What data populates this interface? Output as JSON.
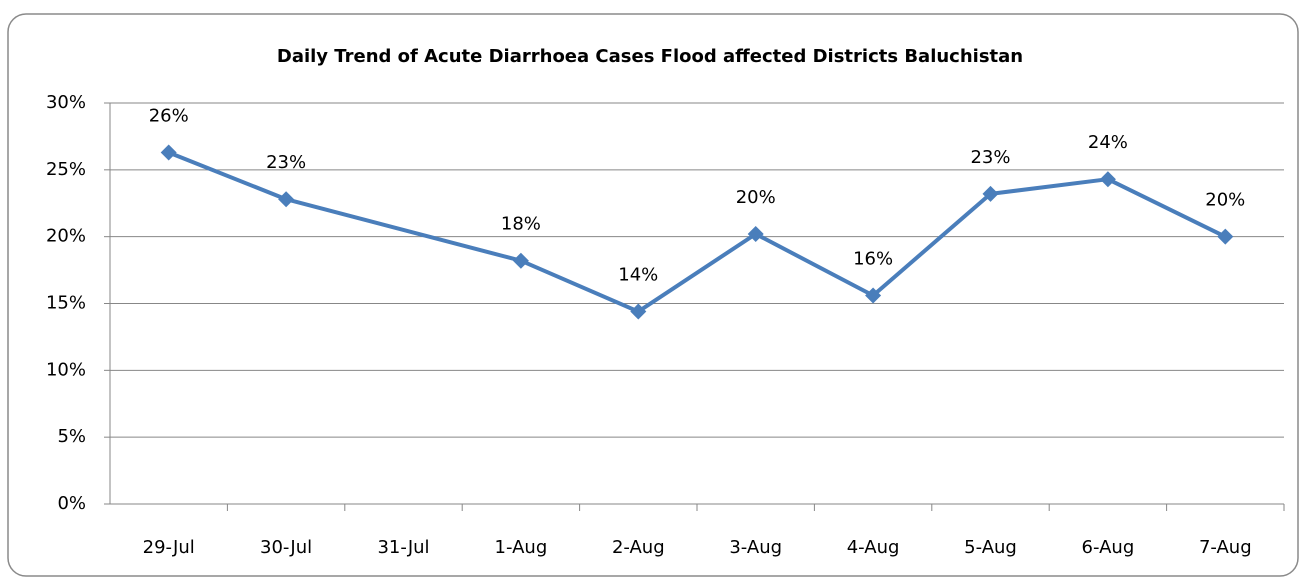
{
  "chart_data": {
    "type": "line",
    "title": "Daily Trend of Acute Diarrhoea Cases Flood affected Districts Baluchistan",
    "categories": [
      "29-Jul",
      "30-Jul",
      "31-Jul",
      "1-Aug",
      "2-Aug",
      "3-Aug",
      "4-Aug",
      "5-Aug",
      "6-Aug",
      "7-Aug"
    ],
    "values": [
      26.3,
      22.8,
      null,
      18.2,
      14.4,
      20.2,
      15.6,
      23.2,
      24.3,
      20.0
    ],
    "value_labels": [
      "26%",
      "23%",
      null,
      "18%",
      "14%",
      "20%",
      "16%",
      "23%",
      "24%",
      "20%"
    ],
    "color": "#4a7ebb",
    "ylim": [
      0,
      30
    ],
    "yticks": [
      {
        "value": 0,
        "label": "0%"
      },
      {
        "value": 5,
        "label": "5%"
      },
      {
        "value": 10,
        "label": "10%"
      },
      {
        "value": 15,
        "label": "15%"
      },
      {
        "value": 20,
        "label": "20%"
      },
      {
        "value": 25,
        "label": "25%"
      },
      {
        "value": 30,
        "label": "30%"
      }
    ],
    "grid": true
  }
}
